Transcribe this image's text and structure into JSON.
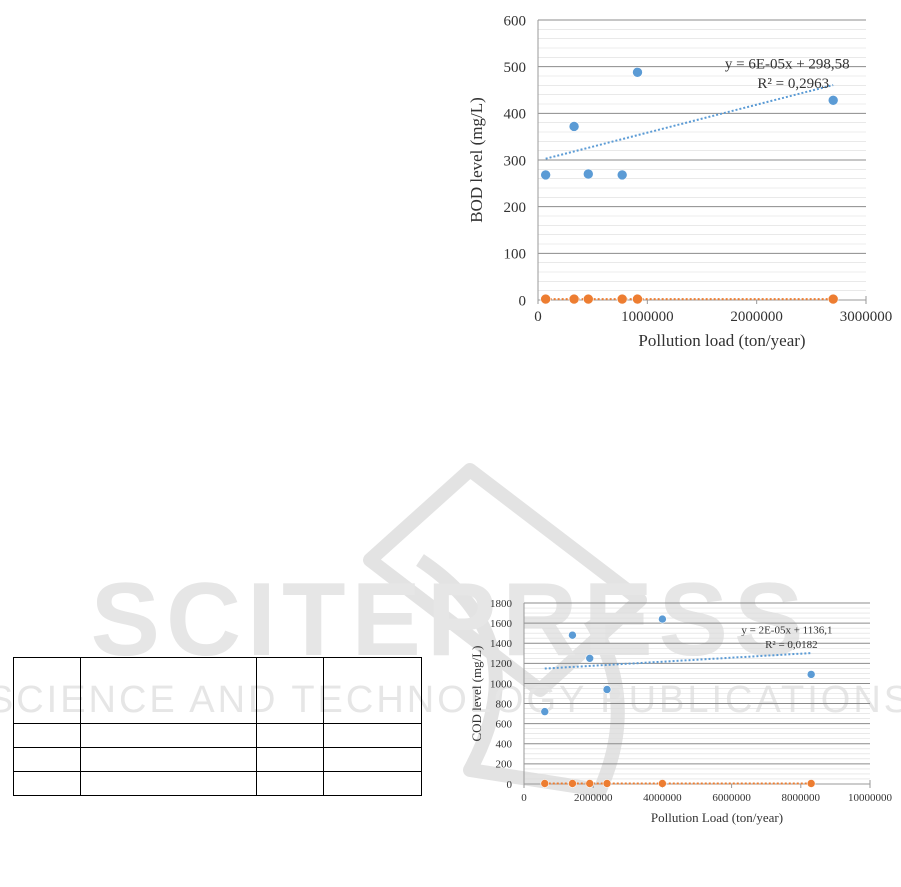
{
  "colors": {
    "series_blue": "#5b9bd5",
    "series_orange": "#ed7d31",
    "grid": "#bfbfbf",
    "axis": "#999999",
    "watermark": "#d9d9d9"
  },
  "watermark": {
    "brand": "SCITEPRESS",
    "tagline": "SCIENCE AND TECHNOLOGY PUBLICATIONS"
  },
  "chart_data": [
    {
      "type": "scatter",
      "title": "",
      "xlabel": "Pollution load (ton/year)",
      "ylabel": "BOD level (mg/L)",
      "xlim": [
        0,
        3000000
      ],
      "ylim": [
        0,
        600
      ],
      "x_ticks": [
        0,
        1000000,
        2000000,
        3000000
      ],
      "x_tick_labels": [
        "0",
        "1000000",
        "2000000",
        "3000000"
      ],
      "y_ticks": [
        0,
        100,
        200,
        300,
        400,
        500,
        600
      ],
      "y_tick_labels": [
        "0",
        "100",
        "200",
        "300",
        "400",
        "500",
        "600"
      ],
      "grid": true,
      "series": [
        {
          "color": "#5b9bd5",
          "points": [
            {
              "x": 70000,
              "y": 268
            },
            {
              "x": 330000,
              "y": 372
            },
            {
              "x": 460000,
              "y": 270
            },
            {
              "x": 770000,
              "y": 268
            },
            {
              "x": 910000,
              "y": 488
            },
            {
              "x": 2700000,
              "y": 428
            }
          ],
          "trendline": {
            "slope": 6e-05,
            "intercept": 298.58
          },
          "equation": "y = 6E-05x + 298,58",
          "r2": "R² = 0,2963"
        },
        {
          "color": "#ed7d31",
          "points": [
            {
              "x": 70000,
              "y": 2
            },
            {
              "x": 330000,
              "y": 2
            },
            {
              "x": 460000,
              "y": 2
            },
            {
              "x": 770000,
              "y": 2
            },
            {
              "x": 910000,
              "y": 2
            },
            {
              "x": 2700000,
              "y": 2
            }
          ],
          "trendline": {
            "slope": 0,
            "intercept": 2
          }
        }
      ]
    },
    {
      "type": "scatter",
      "title": "",
      "xlabel": "Pollution Load (ton/year)",
      "ylabel": "COD level (mg/L)",
      "xlim": [
        0,
        10000000
      ],
      "ylim": [
        0,
        1800
      ],
      "x_ticks": [
        0,
        2000000,
        4000000,
        6000000,
        8000000,
        10000000
      ],
      "x_tick_labels": [
        "0",
        "2000000",
        "4000000",
        "6000000",
        "8000000",
        "10000000"
      ],
      "y_ticks": [
        0,
        200,
        400,
        600,
        800,
        1000,
        1200,
        1400,
        1600,
        1800
      ],
      "y_tick_labels": [
        "0",
        "200",
        "400",
        "600",
        "800",
        "1000",
        "1200",
        "1400",
        "1600",
        "1800"
      ],
      "grid": true,
      "series": [
        {
          "color": "#5b9bd5",
          "points": [
            {
              "x": 600000,
              "y": 720
            },
            {
              "x": 1400000,
              "y": 1480
            },
            {
              "x": 1900000,
              "y": 1250
            },
            {
              "x": 2400000,
              "y": 940
            },
            {
              "x": 4000000,
              "y": 1640
            },
            {
              "x": 8300000,
              "y": 1090
            }
          ],
          "trendline": {
            "slope": 2e-05,
            "intercept": 1136.1
          },
          "equation": "y = 2E-05x + 1136,1",
          "r2": "R² = 0,0182"
        },
        {
          "color": "#ed7d31",
          "points": [
            {
              "x": 600000,
              "y": 5
            },
            {
              "x": 1400000,
              "y": 5
            },
            {
              "x": 1900000,
              "y": 5
            },
            {
              "x": 2400000,
              "y": 5
            },
            {
              "x": 4000000,
              "y": 5
            },
            {
              "x": 8300000,
              "y": 5
            }
          ],
          "trendline": {
            "slope": 0,
            "intercept": 5
          }
        }
      ]
    }
  ]
}
